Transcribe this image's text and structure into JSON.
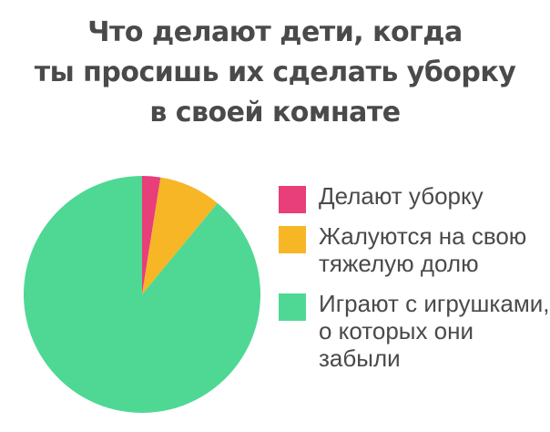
{
  "title_lines": [
    "Что делают дети, когда",
    "ты просишь их сделать уборку",
    "в своей комнате"
  ],
  "chart_data": {
    "type": "pie",
    "title": "Что делают дети, когда ты просишь их сделать уборку в своей комнате",
    "legend_position": "right",
    "slices": [
      {
        "label": "Делают уборку",
        "label_lines": [
          "Делают уборку"
        ],
        "value": 2.5,
        "color": "#e83e7a"
      },
      {
        "label": "Жалуются на свою тяжелую долю",
        "label_lines": [
          "Жалуются на свою",
          "тяжелую долю"
        ],
        "value": 8.5,
        "color": "#f6b626"
      },
      {
        "label": "Играют с игрушками, о которых они забыли",
        "label_lines": [
          "Играют с игрушками,",
          "о которых они",
          "забыли"
        ],
        "value": 89,
        "color": "#4fd894"
      }
    ]
  }
}
